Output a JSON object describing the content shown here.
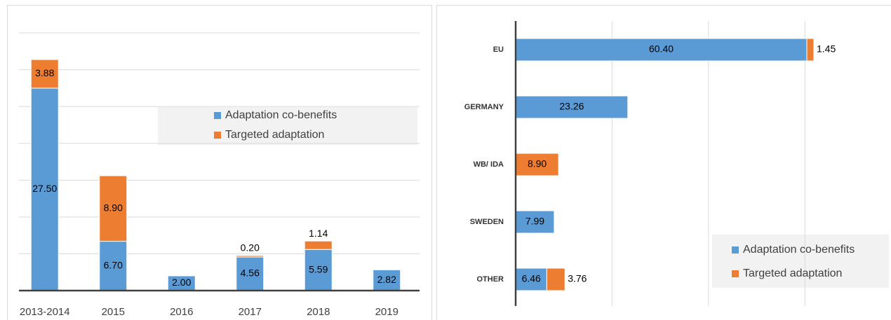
{
  "chart_data": [
    {
      "type": "bar",
      "stacked": true,
      "orientation": "vertical",
      "categories": [
        "2013-2014",
        "2015",
        "2016",
        "2017",
        "2018",
        "2019"
      ],
      "series": [
        {
          "name": "Adaptation co-benefits",
          "color": "#5b9bd5",
          "values": [
            27.5,
            6.7,
            2,
            4.56,
            5.59,
            2.82
          ],
          "value_labels": [
            "27.50",
            "6.70",
            "2.00",
            "4.56",
            "5.59",
            "2.82"
          ]
        },
        {
          "name": "Targeted adaptation",
          "color": "#ed7d31",
          "values": [
            3.88,
            8.9,
            null,
            0.2,
            1.14,
            null
          ],
          "value_labels": [
            "3.88",
            "8.90",
            null,
            "0.20",
            "1.14",
            null
          ]
        }
      ],
      "ylim": [
        0,
        35
      ],
      "yticks": [
        0,
        5,
        10,
        15,
        20,
        25,
        30,
        35
      ],
      "grid": true,
      "legend": "right"
    },
    {
      "type": "bar",
      "stacked": true,
      "orientation": "horizontal",
      "categories": [
        "EU",
        "GERMANY",
        "WB/ IDA",
        "SWEDEN",
        "OTHER"
      ],
      "series": [
        {
          "name": "Adaptation co-benefits",
          "color": "#5b9bd5",
          "values": [
            60.4,
            23.26,
            null,
            7.99,
            6.46
          ],
          "value_labels": [
            "60.40",
            "23.26",
            null,
            "7.99",
            "6.46"
          ]
        },
        {
          "name": "Targeted adaptation",
          "color": "#ed7d31",
          "values": [
            1.45,
            null,
            8.9,
            null,
            3.76
          ],
          "value_labels": [
            "1.45",
            null,
            "8.90",
            null,
            "3.76"
          ]
        }
      ],
      "xlim": [
        0,
        70
      ],
      "xticks": [
        0,
        20,
        40,
        60
      ],
      "grid": true,
      "legend": "lower right"
    }
  ]
}
